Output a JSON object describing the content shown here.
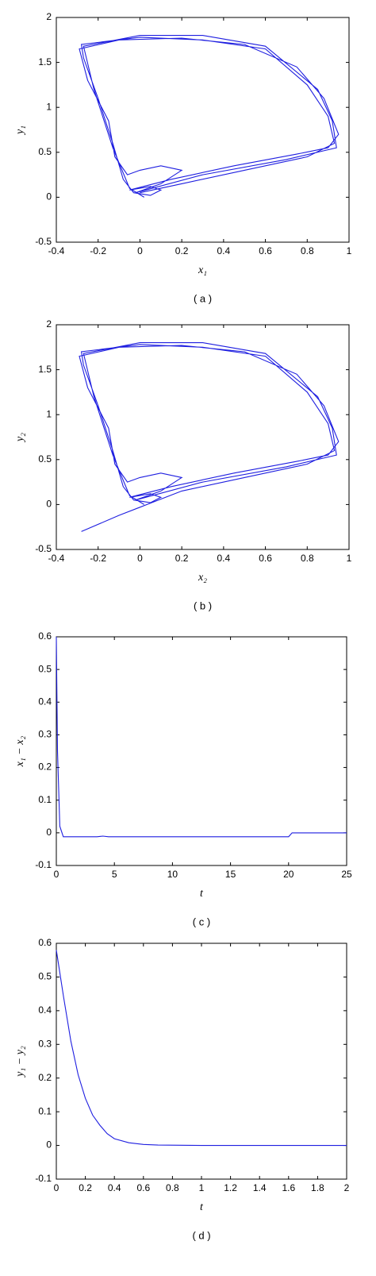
{
  "chart_data": [
    {
      "type": "line",
      "xlabel": "x₁",
      "ylabel": "y₁",
      "caption": "( a )",
      "color": "#1f1fe0",
      "xlim": [
        -0.4,
        1
      ],
      "ylim": [
        -0.5,
        2
      ],
      "xticks": [
        -0.4,
        -0.2,
        0,
        0.2,
        0.4,
        0.6,
        0.8,
        1
      ],
      "yticks": [
        -0.5,
        0,
        0.5,
        1,
        1.5,
        2
      ],
      "x": [
        0,
        0.2,
        0.5,
        0.8,
        0.93,
        0.9,
        0.8,
        0.6,
        0.3,
        0,
        -0.28,
        -0.27,
        -0.2,
        -0.13,
        -0.08,
        -0.03,
        0.05,
        0.1,
        0.05,
        -0.05,
        0.15,
        0.45,
        0.75,
        0.9,
        0.95,
        0.88,
        0.75,
        0.5,
        0.2,
        -0.1,
        -0.29,
        -0.25,
        -0.15,
        -0.12,
        -0.06,
        0,
        0.1,
        0.2,
        0.1,
        -0.02,
        0.3,
        0.7,
        0.94,
        0.92,
        0.85,
        0.6,
        0.3,
        0,
        -0.27,
        -0.22,
        -0.13,
        -0.05,
        0.02
      ],
      "values": [
        0.05,
        0.15,
        0.3,
        0.45,
        0.6,
        0.9,
        1.25,
        1.65,
        1.75,
        1.78,
        1.7,
        1.55,
        1.1,
        0.6,
        0.2,
        0.05,
        0.02,
        0.08,
        0.12,
        0.08,
        0.2,
        0.35,
        0.48,
        0.55,
        0.7,
        1.1,
        1.45,
        1.7,
        1.77,
        1.75,
        1.65,
        1.3,
        0.85,
        0.45,
        0.25,
        0.3,
        0.35,
        0.3,
        0.15,
        0.05,
        0.25,
        0.42,
        0.55,
        0.85,
        1.2,
        1.68,
        1.8,
        1.8,
        1.68,
        1.2,
        0.55,
        0.1,
        0.0
      ]
    },
    {
      "type": "line",
      "xlabel": "x₂",
      "ylabel": "y₂",
      "caption": "( b )",
      "color": "#1f1fe0",
      "xlim": [
        -0.4,
        1
      ],
      "ylim": [
        -0.5,
        2
      ],
      "xticks": [
        -0.4,
        -0.2,
        0,
        0.2,
        0.4,
        0.6,
        0.8,
        1
      ],
      "yticks": [
        -0.5,
        0,
        0.5,
        1,
        1.5,
        2
      ],
      "x": [
        -0.28,
        -0.1,
        0,
        0.2,
        0.5,
        0.8,
        0.93,
        0.9,
        0.8,
        0.6,
        0.3,
        0,
        -0.28,
        -0.27,
        -0.2,
        -0.13,
        -0.08,
        -0.03,
        0.05,
        0.1,
        0.05,
        -0.05,
        0.15,
        0.45,
        0.75,
        0.9,
        0.95,
        0.88,
        0.75,
        0.5,
        0.2,
        -0.1,
        -0.29,
        -0.25,
        -0.15,
        -0.12,
        -0.06,
        0,
        0.1,
        0.2,
        0.1,
        -0.02,
        0.3,
        0.7,
        0.94,
        0.92,
        0.85,
        0.6,
        0.3,
        0,
        -0.27,
        -0.22,
        -0.13,
        -0.05,
        0.02
      ],
      "values": [
        -0.3,
        -0.12,
        -0.03,
        0.15,
        0.3,
        0.45,
        0.6,
        0.9,
        1.25,
        1.65,
        1.75,
        1.78,
        1.7,
        1.55,
        1.1,
        0.6,
        0.2,
        0.05,
        0.02,
        0.08,
        0.12,
        0.08,
        0.2,
        0.35,
        0.48,
        0.55,
        0.7,
        1.1,
        1.45,
        1.7,
        1.77,
        1.75,
        1.65,
        1.3,
        0.85,
        0.45,
        0.25,
        0.3,
        0.35,
        0.3,
        0.15,
        0.05,
        0.25,
        0.42,
        0.55,
        0.85,
        1.2,
        1.68,
        1.8,
        1.8,
        1.68,
        1.2,
        0.55,
        0.1,
        0.0
      ]
    },
    {
      "type": "line",
      "xlabel": "t",
      "ylabel": "x₁ − x₂",
      "caption": "( c )",
      "color": "#1f1fe0",
      "xlim": [
        0,
        25
      ],
      "ylim": [
        -0.1,
        0.6
      ],
      "xticks": [
        0,
        5,
        10,
        15,
        20,
        25
      ],
      "yticks": [
        -0.1,
        0,
        0.1,
        0.2,
        0.3,
        0.4,
        0.5,
        0.6
      ],
      "x": [
        0,
        0.1,
        0.3,
        0.6,
        1,
        3.5,
        4,
        4.5,
        20,
        20.3,
        21,
        25
      ],
      "values": [
        0.6,
        0.25,
        0.02,
        -0.012,
        -0.012,
        -0.012,
        -0.01,
        -0.012,
        -0.012,
        0,
        0,
        0
      ]
    },
    {
      "type": "line",
      "xlabel": "t",
      "ylabel": "y₁ − y₂",
      "caption": "( d )",
      "color": "#1f1fe0",
      "xlim": [
        0,
        2
      ],
      "ylim": [
        -0.1,
        0.6
      ],
      "xticks": [
        0,
        0.2,
        0.4,
        0.6,
        0.8,
        1,
        1.2,
        1.4,
        1.6,
        1.8,
        2
      ],
      "yticks": [
        -0.1,
        0,
        0.1,
        0.2,
        0.3,
        0.4,
        0.5,
        0.6
      ],
      "x": [
        0,
        0.05,
        0.1,
        0.15,
        0.2,
        0.25,
        0.3,
        0.35,
        0.4,
        0.5,
        0.6,
        0.7,
        1,
        2
      ],
      "values": [
        0.58,
        0.44,
        0.31,
        0.21,
        0.14,
        0.09,
        0.06,
        0.035,
        0.02,
        0.008,
        0.003,
        0.001,
        0,
        0
      ]
    }
  ]
}
